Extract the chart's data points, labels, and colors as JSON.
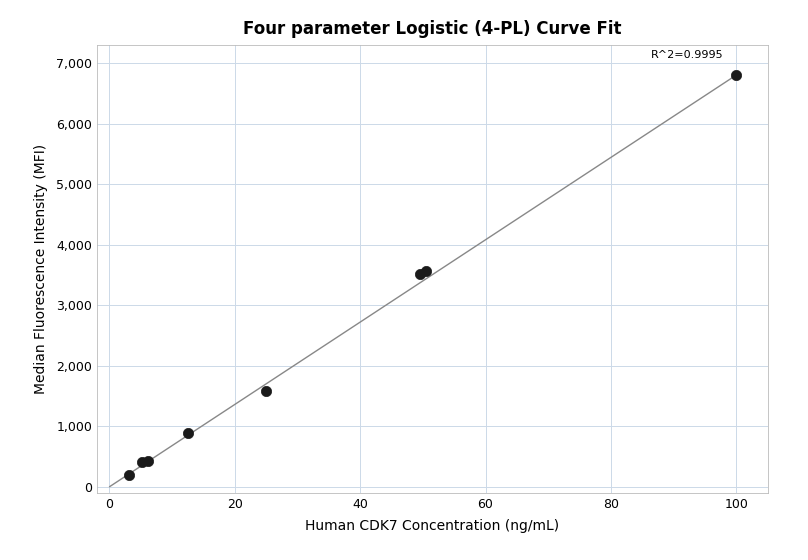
{
  "title": "Four parameter Logistic (4-PL) Curve Fit",
  "xlabel": "Human CDK7 Concentration (ng/mL)",
  "ylabel": "Median Fluorescence Intensity (MFI)",
  "scatter_x": [
    3.1,
    5.2,
    6.2,
    12.5,
    25.0,
    49.5,
    50.5,
    100.0
  ],
  "scatter_y": [
    195,
    415,
    420,
    880,
    1580,
    3520,
    3560,
    6800
  ],
  "line_x": [
    0.0,
    100.0
  ],
  "line_y": [
    0.0,
    6800.0
  ],
  "xlim": [
    -2,
    105
  ],
  "ylim": [
    -100,
    7300
  ],
  "xticks": [
    0,
    20,
    40,
    60,
    80,
    100
  ],
  "yticks": [
    0,
    1000,
    2000,
    3000,
    4000,
    5000,
    6000,
    7000
  ],
  "ytick_labels": [
    "0",
    "1,000",
    "2,000",
    "3,000",
    "4,000",
    "5,000",
    "6,000",
    "7,000"
  ],
  "r2_text": "R^2=0.9995",
  "r2_x": 98,
  "r2_y": 7050,
  "dot_color": "#1a1a1a",
  "line_color": "#888888",
  "bg_color": "#ffffff",
  "grid_color": "#ccd9e8",
  "title_fontsize": 12,
  "label_fontsize": 10,
  "tick_fontsize": 9,
  "annotation_fontsize": 8
}
